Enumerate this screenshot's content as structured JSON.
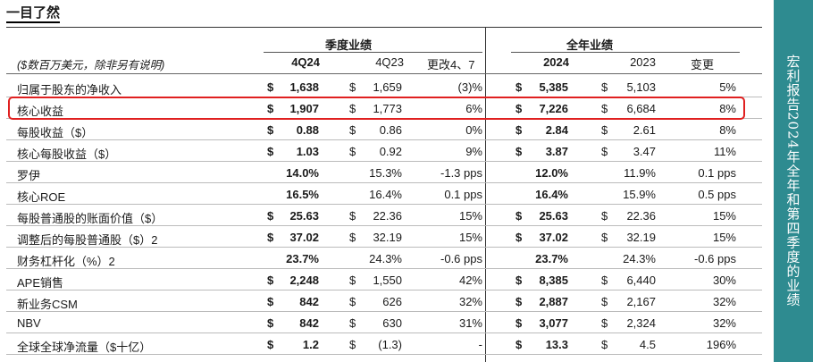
{
  "page": {
    "title": "一目了然",
    "sidebar_text": "宏利报告2024年全年和第四季度的业绩"
  },
  "table": {
    "quarter_group": "季度业绩",
    "annual_group": "全年业绩",
    "note": "($数百万美元，除非另有说明)",
    "headers": {
      "q_cur": "4Q24",
      "q_prev": "4Q23",
      "q_chg": "更改4、7",
      "y_cur": "2024",
      "y_prev": "2023",
      "y_chg": "变更"
    },
    "rows": [
      {
        "label": "归属于股东的净收入",
        "d1": "$",
        "q_cur": "1,638",
        "d2": "$",
        "q_prev": "1,659",
        "q_chg": "(3)%",
        "d3": "$",
        "y_cur": "5,385",
        "d4": "$",
        "y_prev": "5,103",
        "y_chg": "5%"
      },
      {
        "label": "核心收益",
        "d1": "$",
        "q_cur": "1,907",
        "d2": "$",
        "q_prev": "1,773",
        "q_chg": "6%",
        "d3": "$",
        "y_cur": "7,226",
        "d4": "$",
        "y_prev": "6,684",
        "y_chg": "8%"
      },
      {
        "label": "每股收益（$）",
        "d1": "$",
        "q_cur": "0.88",
        "d2": "$",
        "q_prev": "0.86",
        "q_chg": "0%",
        "d3": "$",
        "y_cur": "2.84",
        "d4": "$",
        "y_prev": "2.61",
        "y_chg": "8%"
      },
      {
        "label": "核心每股收益（$）",
        "d1": "$",
        "q_cur": "1.03",
        "d2": "$",
        "q_prev": "0.92",
        "q_chg": "9%",
        "d3": "$",
        "y_cur": "3.87",
        "d4": "$",
        "y_prev": "3.47",
        "y_chg": "11%"
      },
      {
        "label": "罗伊",
        "d1": "",
        "q_cur": "14.0%",
        "d2": "",
        "q_prev": "15.3%",
        "q_chg": "-1.3 pps",
        "d3": "",
        "y_cur": "12.0%",
        "d4": "",
        "y_prev": "11.9%",
        "y_chg": "0.1 pps"
      },
      {
        "label": "核心ROE",
        "d1": "",
        "q_cur": "16.5%",
        "d2": "",
        "q_prev": "16.4%",
        "q_chg": "0.1 pps",
        "d3": "",
        "y_cur": "16.4%",
        "d4": "",
        "y_prev": "15.9%",
        "y_chg": "0.5 pps"
      },
      {
        "label": "每股普通股的账面价值（$）",
        "d1": "$",
        "q_cur": "25.63",
        "d2": "$",
        "q_prev": "22.36",
        "q_chg": "15%",
        "d3": "$",
        "y_cur": "25.63",
        "d4": "$",
        "y_prev": "22.36",
        "y_chg": "15%"
      },
      {
        "label": "调整后的每股普通股（$）2",
        "d1": "$",
        "q_cur": "37.02",
        "d2": "$",
        "q_prev": "32.19",
        "q_chg": "15%",
        "d3": "$",
        "y_cur": "37.02",
        "d4": "$",
        "y_prev": "32.19",
        "y_chg": "15%"
      },
      {
        "label": "财务杠杆化（%）2",
        "d1": "",
        "q_cur": "23.7%",
        "d2": "",
        "q_prev": "24.3%",
        "q_chg": "-0.6 pps",
        "d3": "",
        "y_cur": "23.7%",
        "d4": "",
        "y_prev": "24.3%",
        "y_chg": "-0.6 pps"
      },
      {
        "label": "APE销售",
        "d1": "$",
        "q_cur": "2,248",
        "d2": "$",
        "q_prev": "1,550",
        "q_chg": "42%",
        "d3": "$",
        "y_cur": "8,385",
        "d4": "$",
        "y_prev": "6,440",
        "y_chg": "30%"
      },
      {
        "label": "新业务CSM",
        "d1": "$",
        "q_cur": "842",
        "d2": "$",
        "q_prev": "626",
        "q_chg": "32%",
        "d3": "$",
        "y_cur": "2,887",
        "d4": "$",
        "y_prev": "2,167",
        "y_chg": "32%"
      },
      {
        "label": "NBV",
        "d1": "$",
        "q_cur": "842",
        "d2": "$",
        "q_prev": "630",
        "q_chg": "31%",
        "d3": "$",
        "y_cur": "3,077",
        "d4": "$",
        "y_prev": "2,324",
        "y_chg": "32%"
      },
      {
        "label": "全球全球净流量（$十亿）",
        "d1": "$",
        "q_cur": "1.2",
        "d2": "$",
        "q_prev": "(1.3)",
        "q_chg": "-",
        "d3": "$",
        "y_cur": "13.3",
        "d4": "$",
        "y_prev": "4.5",
        "y_chg": "196%"
      }
    ]
  }
}
